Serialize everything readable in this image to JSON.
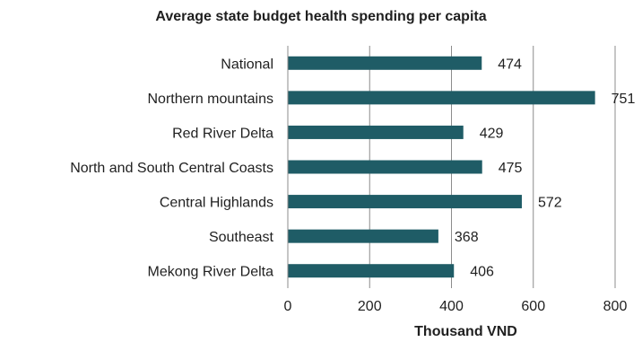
{
  "chart_data": {
    "type": "bar",
    "orientation": "horizontal",
    "title": "Average state budget health spending per capita",
    "xlabel": "Thousand VND",
    "ylabel": "",
    "categories": [
      "National",
      "Northern mountains",
      "Red River Delta",
      "North and South Central Coasts",
      "Central Highlands",
      "Southeast",
      "Mekong River Delta"
    ],
    "values": [
      474,
      751,
      429,
      475,
      572,
      368,
      406
    ],
    "xlim": [
      0,
      800
    ],
    "xticks": [
      0,
      200,
      400,
      600,
      800
    ],
    "grid": "vertical",
    "bar_color": "#1f5c66",
    "data_labels": true
  }
}
